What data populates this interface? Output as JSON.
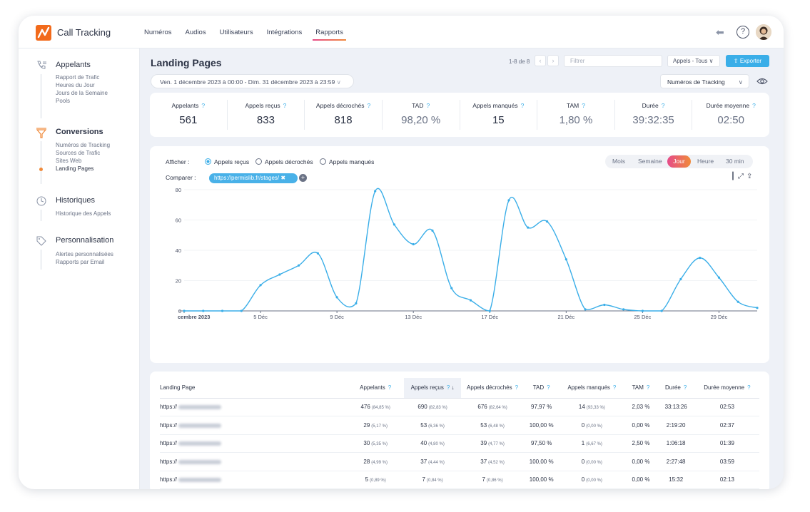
{
  "app": {
    "name": "Call Tracking"
  },
  "nav": [
    "Numéros",
    "Audios",
    "Utilisateurs",
    "Intégrations",
    "Rapports"
  ],
  "nav_active": "Rapports",
  "sidebar": {
    "appelants": {
      "title": "Appelants",
      "items": [
        "Rapport de Trafic",
        "Heures du Jour",
        "Jours de la Semaine",
        "Pools"
      ]
    },
    "conversions": {
      "title": "Conversions",
      "items": [
        "Numéros de Tracking",
        "Sources de Trafic",
        "Sites Web",
        "Landing Pages"
      ],
      "active": "Landing Pages"
    },
    "historiques": {
      "title": "Historiques",
      "items": [
        "Historique des Appels"
      ]
    },
    "personnalisation": {
      "title": "Personnalisation",
      "items": [
        "Alertes personnalisées",
        "Rapports par Email"
      ]
    }
  },
  "page": {
    "title": "Landing Pages",
    "pager": "1-8 de 8",
    "filter_placeholder": "Filtrer",
    "appels_select": "Appels - Tous",
    "export_label": "Exporter",
    "date_range": "Ven. 1 décembre 2023 à 00:00 - Dim. 31 décembre 2023 à 23:59",
    "tracking_select": "Numéros de Tracking"
  },
  "kpis": [
    {
      "label": "Appelants",
      "value": "561"
    },
    {
      "label": "Appels reçus",
      "value": "833"
    },
    {
      "label": "Appels décrochés",
      "value": "818"
    },
    {
      "label": "TAD",
      "value": "98,20 %"
    },
    {
      "label": "Appels manqués",
      "value": "15"
    },
    {
      "label": "TAM",
      "value": "1,80 %"
    },
    {
      "label": "Durée",
      "value": "39:32:35"
    },
    {
      "label": "Durée moyenne",
      "value": "02:50"
    }
  ],
  "chart_controls": {
    "afficher_label": "Afficher :",
    "options": [
      "Appels reçus",
      "Appels décrochés",
      "Appels manqués"
    ],
    "selected": "Appels reçus",
    "comparer_label": "Comparer :",
    "compare_chip": "https://permislib.fr/stages/",
    "granularity": [
      "Mois",
      "Semaine",
      "Jour",
      "Heure",
      "30 min"
    ],
    "granularity_active": "Jour"
  },
  "chart_data": {
    "type": "line",
    "x": [
      "1",
      "2",
      "3",
      "4",
      "5",
      "6",
      "7",
      "8",
      "9",
      "10",
      "11",
      "12",
      "13",
      "14",
      "15",
      "16",
      "17",
      "18",
      "19",
      "20",
      "21",
      "22",
      "23",
      "24",
      "25",
      "26",
      "27",
      "28",
      "29",
      "30",
      "31"
    ],
    "tick_labels": [
      "cembre 2023",
      "5 Déc",
      "9 Déc",
      "13 Déc",
      "17 Déc",
      "21 Déc",
      "25 Déc",
      "29 Déc"
    ],
    "series": [
      {
        "values": [
          0,
          0,
          0,
          0,
          17,
          24,
          30,
          38,
          9,
          5,
          79,
          57,
          44,
          53,
          15,
          7,
          0,
          73,
          55,
          59,
          34,
          1,
          4,
          1,
          0,
          0,
          21,
          35,
          22,
          6,
          2
        ]
      }
    ],
    "ylim": [
      0,
      80
    ],
    "yticks": [
      0,
      20,
      40,
      60,
      80
    ],
    "color": "#3aaee8",
    "grid": true
  },
  "table": {
    "headers": [
      "Landing Page",
      "Appelants",
      "Appels reçus",
      "Appels décrochés",
      "TAD",
      "Appels manqués",
      "TAM",
      "Durée",
      "Durée moyenne"
    ],
    "rows": [
      {
        "page": "https://",
        "appelants": "476",
        "appelants_pct": "(84,85 %)",
        "recus": "690",
        "recus_pct": "(82,83 %)",
        "decroches": "676",
        "decroches_pct": "(82,64 %)",
        "tad": "97,97 %",
        "manques": "14",
        "manques_pct": "(93,33 %)",
        "tam": "2,03 %",
        "duree": "33:13:26",
        "duree_moy": "02:53"
      },
      {
        "page": "https://",
        "appelants": "29",
        "appelants_pct": "(5,17 %)",
        "recus": "53",
        "recus_pct": "(6,36 %)",
        "decroches": "53",
        "decroches_pct": "(6,48 %)",
        "tad": "100,00 %",
        "manques": "0",
        "manques_pct": "(0,00 %)",
        "tam": "0,00 %",
        "duree": "2:19:20",
        "duree_moy": "02:37"
      },
      {
        "page": "https://",
        "appelants": "30",
        "appelants_pct": "(5,35 %)",
        "recus": "40",
        "recus_pct": "(4,80 %)",
        "decroches": "39",
        "decroches_pct": "(4,77 %)",
        "tad": "97,50 %",
        "manques": "1",
        "manques_pct": "(6,67 %)",
        "tam": "2,50 %",
        "duree": "1:06:18",
        "duree_moy": "01:39"
      },
      {
        "page": "https://",
        "appelants": "28",
        "appelants_pct": "(4,99 %)",
        "recus": "37",
        "recus_pct": "(4,44 %)",
        "decroches": "37",
        "decroches_pct": "(4,52 %)",
        "tad": "100,00 %",
        "manques": "0",
        "manques_pct": "(0,00 %)",
        "tam": "0,00 %",
        "duree": "2:27:48",
        "duree_moy": "03:59"
      },
      {
        "page": "https://",
        "appelants": "5",
        "appelants_pct": "(0,89 %)",
        "recus": "7",
        "recus_pct": "(0,84 %)",
        "decroches": "7",
        "decroches_pct": "(0,86 %)",
        "tad": "100,00 %",
        "manques": "0",
        "manques_pct": "(0,00 %)",
        "tam": "0,00 %",
        "duree": "15:32",
        "duree_moy": "02:13"
      }
    ]
  }
}
